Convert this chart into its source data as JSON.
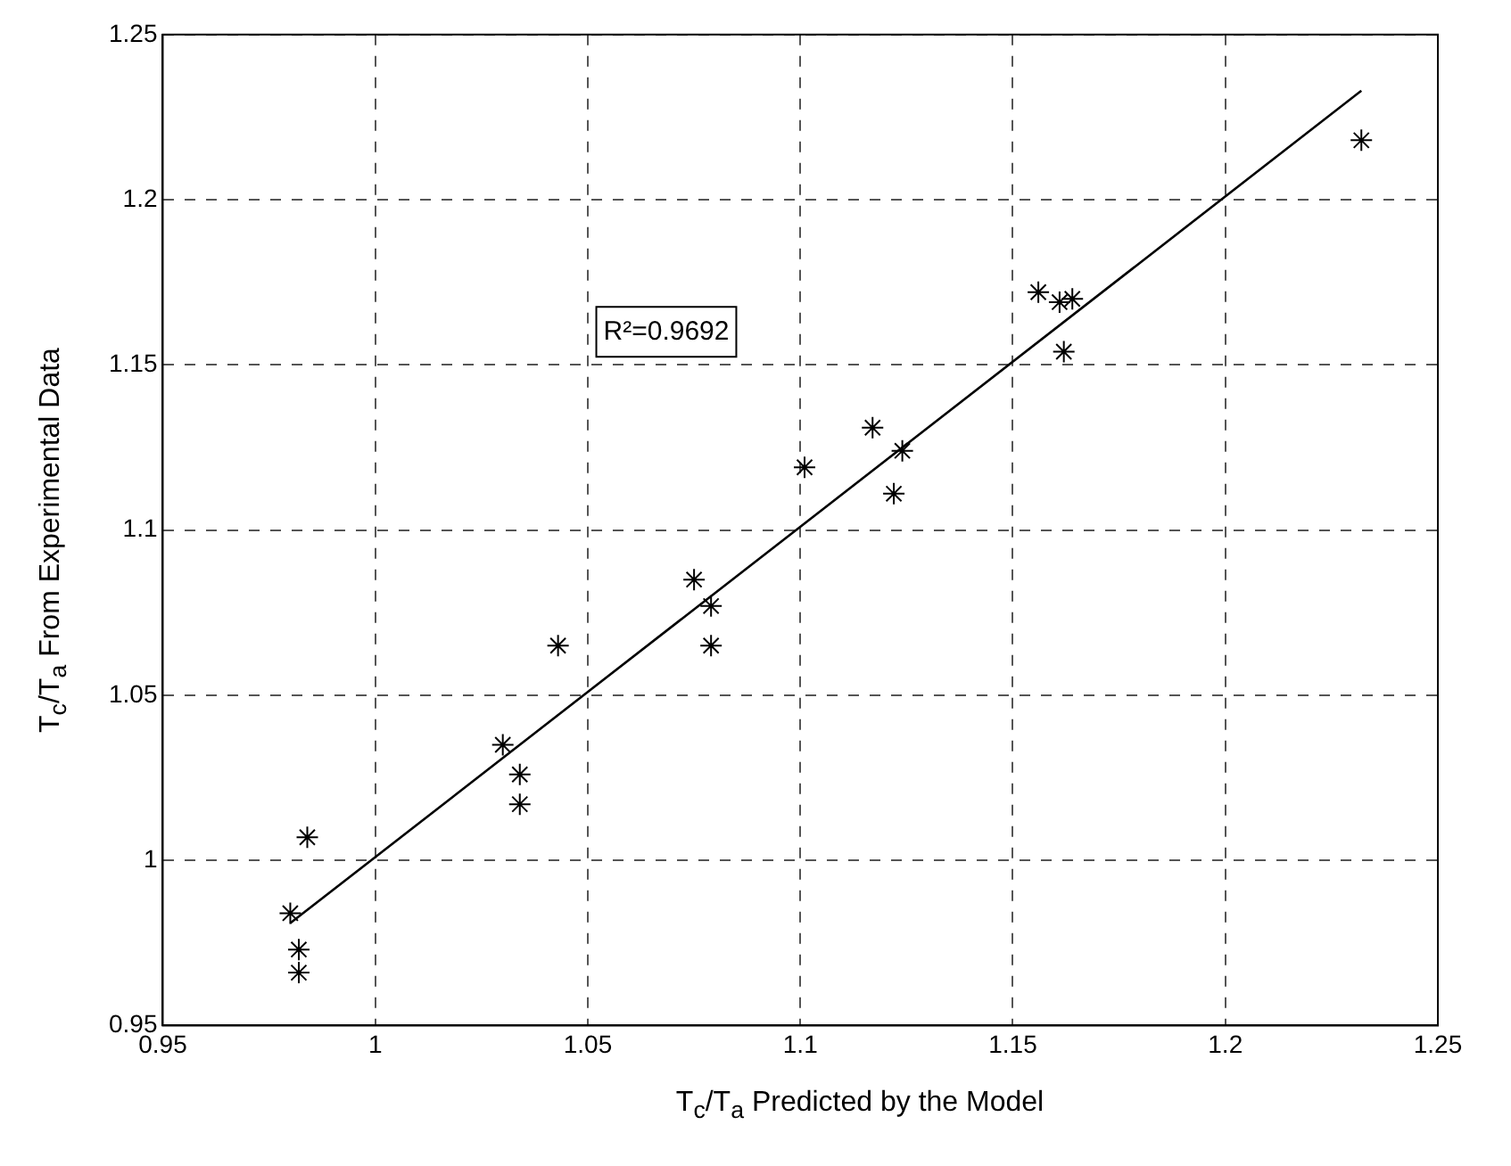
{
  "chart_data": {
    "type": "scatter",
    "xlabel": "T$_{c}$/T$_{a}$ Predicted by the Model",
    "ylabel": "T$_{c}$/T$_{a}$ From Experimental Data",
    "annotations": [
      "R²=0.9692"
    ],
    "series": [
      {
        "type": "scatter",
        "color": "#000000",
        "x": [
          0.98,
          0.982,
          0.982,
          0.984,
          1.03,
          1.034,
          1.034,
          1.043,
          1.075,
          1.079,
          1.079,
          1.101,
          1.117,
          1.124,
          1.122,
          1.156,
          1.161,
          1.164,
          1.162,
          1.232
        ],
        "values": [
          0.984,
          0.973,
          0.966,
          1.007,
          1.035,
          1.026,
          1.017,
          1.065,
          1.085,
          1.077,
          1.065,
          1.119,
          1.131,
          1.124,
          1.111,
          1.172,
          1.169,
          1.17,
          1.154,
          1.218
        ]
      },
      {
        "type": "line",
        "color": "#000000",
        "marker": "none",
        "x": [
          0.98,
          1.232
        ],
        "values": [
          0.981,
          1.233
        ]
      }
    ],
    "marker": "cross",
    "grid": true,
    "xlim": [
      0.95,
      1.25
    ],
    "xticks": [
      0.95,
      1,
      1.05,
      1.1,
      1.15,
      1.2,
      1.25
    ],
    "ylim": [
      0.95,
      1.25
    ],
    "yticks": [
      0.95,
      1,
      1.05,
      1.1,
      1.15,
      1.2,
      1.25
    ]
  }
}
